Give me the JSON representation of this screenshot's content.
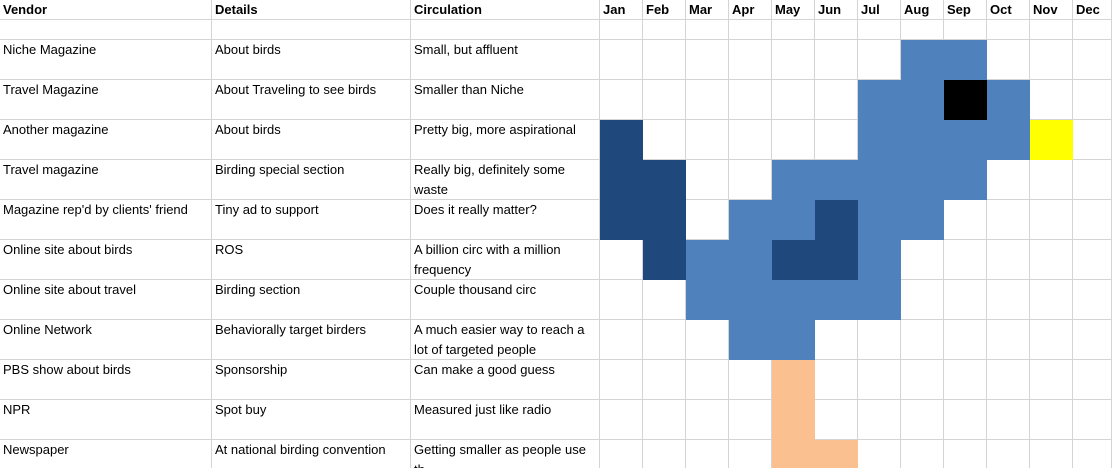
{
  "columns": [
    "Vendor",
    "Details",
    "Circulation",
    "Jan",
    "Feb",
    "Mar",
    "Apr",
    "May",
    "Jun",
    "Jul",
    "Aug",
    "Sep",
    "Oct",
    "Nov",
    "Dec"
  ],
  "rows": [
    {
      "cells": [
        "Niche Magazine",
        "About birds",
        "Small, but affluent"
      ],
      "fills": [
        null,
        null,
        null,
        null,
        null,
        null,
        null,
        "#4f81bd",
        "#4f81bd",
        null,
        null,
        null
      ]
    },
    {
      "cells": [
        "Travel Magazine",
        "About Traveling to see birds",
        "Smaller than Niche"
      ],
      "fills": [
        null,
        null,
        null,
        null,
        null,
        null,
        "#4f81bd",
        "#4f81bd",
        "#000000",
        "#4f81bd",
        null,
        null
      ]
    },
    {
      "cells": [
        "Another magazine",
        "About birds",
        "Pretty big, more aspirational"
      ],
      "fills": [
        "#1f497d",
        null,
        null,
        null,
        null,
        null,
        "#4f81bd",
        "#4f81bd",
        "#4f81bd",
        "#4f81bd",
        "#ffff00",
        null
      ]
    },
    {
      "cells": [
        "Travel magazine",
        "Birding special section",
        "Really big, definitely some waste"
      ],
      "fills": [
        "#1f497d",
        "#1f497d",
        null,
        null,
        "#4f81bd",
        "#4f81bd",
        "#4f81bd",
        "#4f81bd",
        "#4f81bd",
        null,
        null,
        null
      ]
    },
    {
      "cells": [
        "Magazine rep'd by clients' friend",
        "Tiny ad to support",
        "Does it really matter?"
      ],
      "fills": [
        "#1f497d",
        "#1f497d",
        null,
        "#4f81bd",
        "#4f81bd",
        "#1f497d",
        "#4f81bd",
        "#4f81bd",
        null,
        null,
        null,
        null
      ]
    },
    {
      "cells": [
        "Online site about birds",
        "ROS",
        "A billion circ with a million frequency"
      ],
      "fills": [
        null,
        "#1f497d",
        "#4f81bd",
        "#4f81bd",
        "#1f497d",
        "#1f497d",
        "#4f81bd",
        null,
        null,
        null,
        null,
        null
      ]
    },
    {
      "cells": [
        "Online site about travel",
        "Birding section",
        "Couple thousand circ"
      ],
      "fills": [
        null,
        null,
        "#4f81bd",
        "#4f81bd",
        "#4f81bd",
        "#4f81bd",
        "#4f81bd",
        null,
        null,
        null,
        null,
        null
      ]
    },
    {
      "cells": [
        "Online Network",
        "Behaviorally target birders",
        "A much easier way to reach a lot of targeted people"
      ],
      "fills": [
        null,
        null,
        null,
        "#4f81bd",
        "#4f81bd",
        null,
        null,
        null,
        null,
        null,
        null,
        null
      ]
    },
    {
      "cells": [
        "PBS show about birds",
        "Sponsorship",
        "Can make a good guess"
      ],
      "fills": [
        null,
        null,
        null,
        null,
        "#fac090",
        null,
        null,
        null,
        null,
        null,
        null,
        null
      ]
    },
    {
      "cells": [
        "NPR",
        "Spot buy",
        "Measured just like radio"
      ],
      "fills": [
        null,
        null,
        null,
        null,
        "#fac090",
        null,
        null,
        null,
        null,
        null,
        null,
        null
      ]
    },
    {
      "cells": [
        "Newspaper",
        "At national birding convention",
        "Getting smaller as people use th"
      ],
      "fills": [
        null,
        null,
        null,
        null,
        "#fac090",
        "#fac090",
        null,
        null,
        null,
        null,
        null,
        null
      ]
    }
  ]
}
